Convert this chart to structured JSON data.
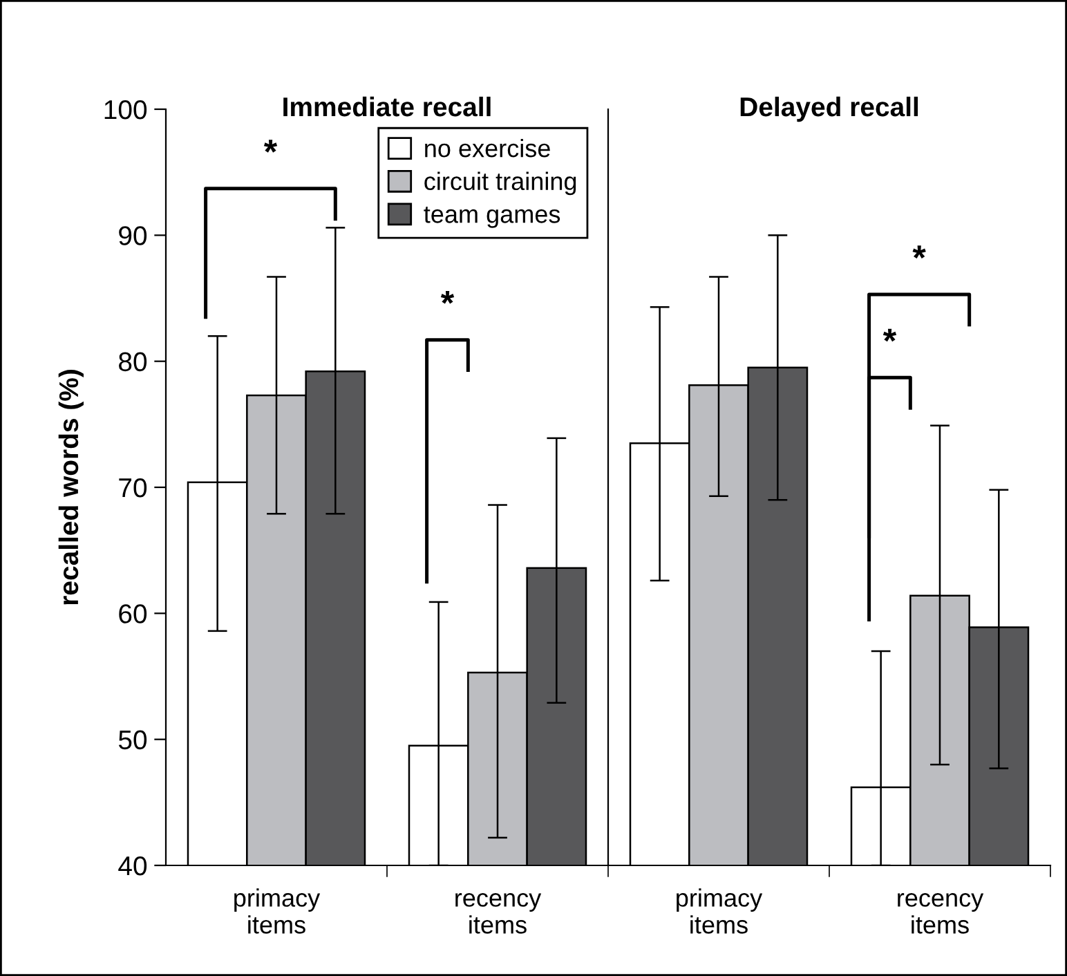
{
  "chart_data": [
    {
      "type": "bar",
      "title": "Immediate recall",
      "ylabel": "recalled words (%)",
      "categories": [
        "primacy\nitems",
        "recency\nitems"
      ],
      "ylim": [
        40,
        100
      ],
      "yticks": [
        40,
        50,
        60,
        70,
        80,
        90,
        100
      ],
      "grid": false,
      "legend": "top right",
      "series": [
        {
          "name": "no exercise",
          "color": "#ffffff",
          "values": [
            70.4,
            49.5
          ],
          "errors": [
            [
              58.6,
              82.0
            ],
            [
              40,
              60.9
            ]
          ]
        },
        {
          "name": "circuit training",
          "color": "#bcbdc1",
          "values": [
            77.3,
            55.3
          ],
          "errors": [
            [
              67.9,
              86.7
            ],
            [
              42.2,
              68.6
            ]
          ]
        },
        {
          "name": "team games",
          "color": "#58585a",
          "values": [
            79.2,
            63.6
          ],
          "errors": [
            [
              67.9,
              90.6
            ],
            [
              52.9,
              73.9
            ]
          ]
        }
      ],
      "annotations": [
        "*",
        "*"
      ]
    },
    {
      "type": "bar",
      "title": "Delayed recall",
      "categories": [
        "primacy\nitems",
        "recency\nitems"
      ],
      "ylim": [
        40,
        100
      ],
      "yticks": [
        40,
        50,
        60,
        70,
        80,
        90,
        100
      ],
      "grid": false,
      "tick_labels": "x",
      "series": [
        {
          "color": "#ffffff",
          "values": [
            73.5,
            46.2
          ],
          "errors": [
            [
              62.6,
              84.3
            ],
            [
              40,
              57.0
            ]
          ]
        },
        {
          "color": "#bcbdc1",
          "values": [
            78.1,
            61.4
          ],
          "errors": [
            [
              69.3,
              86.7
            ],
            [
              48.0,
              74.9
            ]
          ]
        },
        {
          "color": "#58585a",
          "values": [
            79.5,
            58.9
          ],
          "errors": [
            [
              69.0,
              90.0
            ],
            [
              47.7,
              69.8
            ]
          ]
        }
      ],
      "annotations": [
        "*",
        "*"
      ]
    }
  ]
}
